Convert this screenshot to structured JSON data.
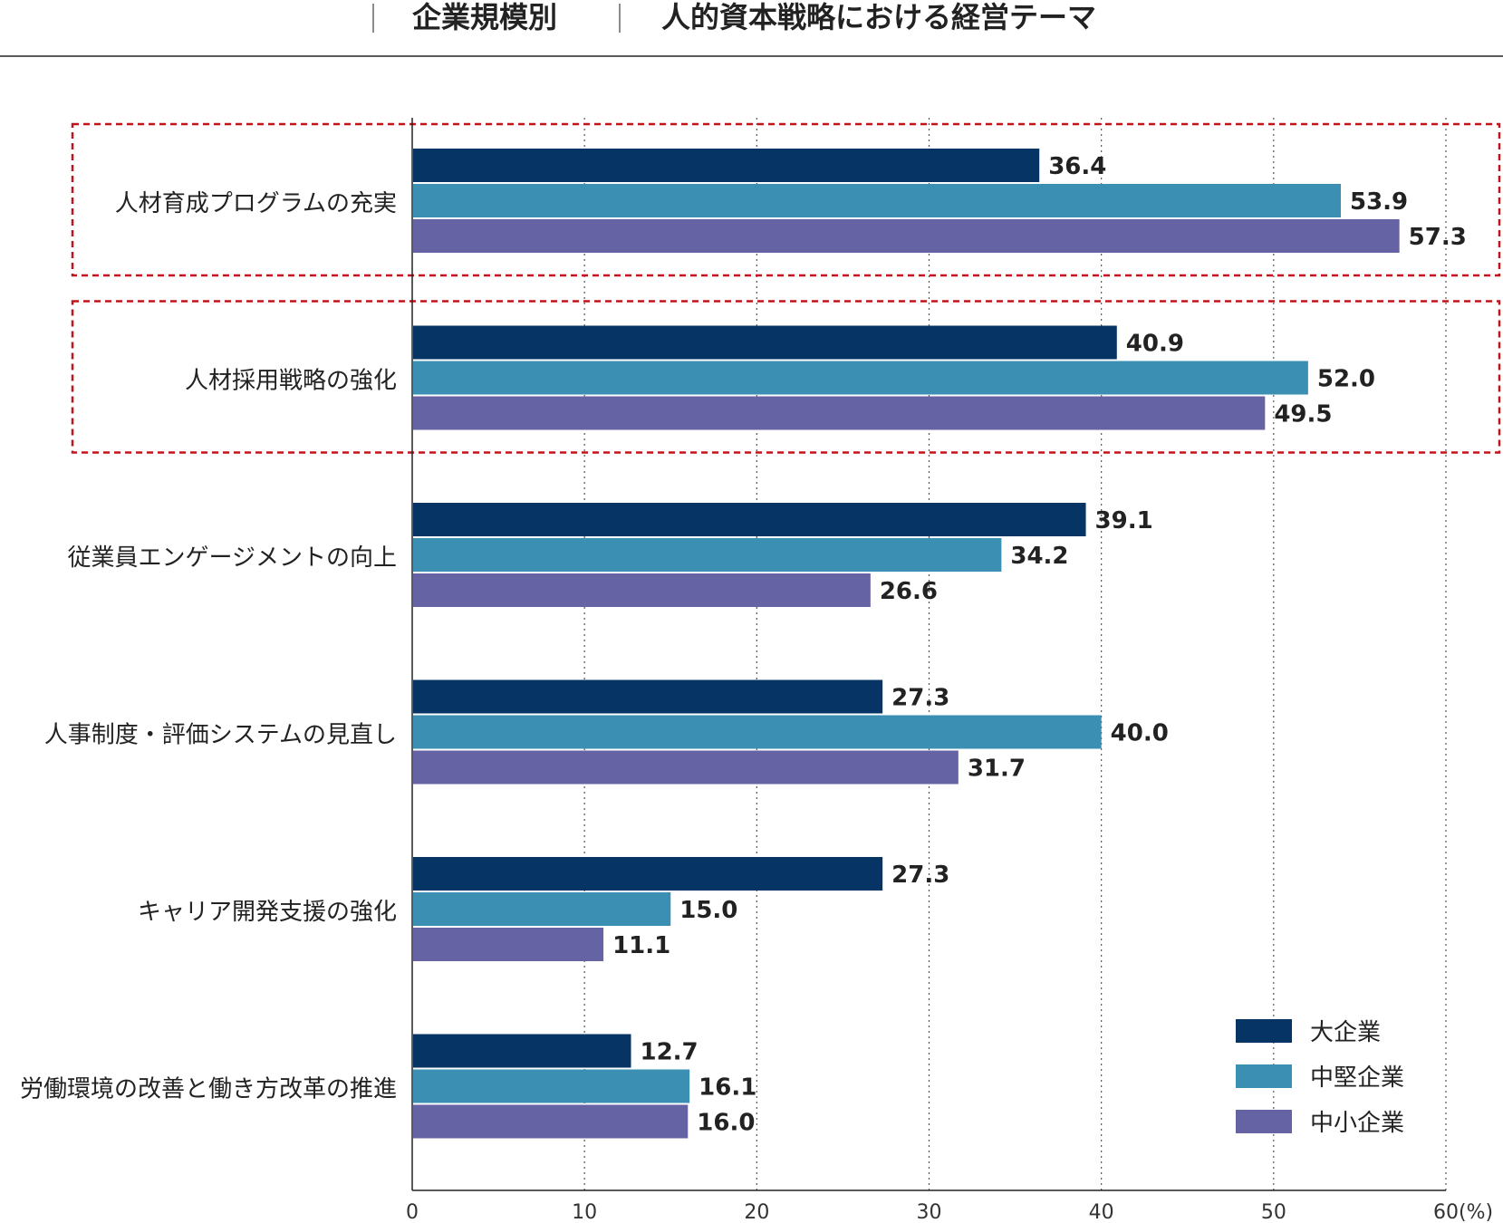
{
  "title": {
    "part1": "企業規模別",
    "part2": "人的資本戦略における経営テーマ"
  },
  "chart_data": {
    "type": "bar",
    "orientation": "horizontal",
    "categories": [
      "人材育成プログラムの充実",
      "人材採用戦略の強化",
      "従業員エンゲージメントの向上",
      "人事制度・評価システムの見直し",
      "キャリア開発支援の強化",
      "労働環境の改善と働き方改革の推進"
    ],
    "series": [
      {
        "name": "大企業",
        "color": "#063565",
        "values": [
          36.4,
          40.9,
          39.1,
          27.3,
          27.3,
          12.7
        ]
      },
      {
        "name": "中堅企業",
        "color": "#3a8fb3",
        "values": [
          53.9,
          52.0,
          34.2,
          40.0,
          15.0,
          16.1
        ]
      },
      {
        "name": "中小企業",
        "color": "#6663a5",
        "values": [
          57.3,
          49.5,
          26.6,
          31.7,
          11.1,
          16.0
        ]
      }
    ],
    "xlim": [
      0,
      60
    ],
    "ticks": [
      "0",
      "10",
      "20",
      "30",
      "40",
      "50",
      "60"
    ],
    "unit": "(%)",
    "grid": "dotted vertical",
    "legend": "bottom-right",
    "highlighted_categories": [
      0,
      1
    ]
  }
}
